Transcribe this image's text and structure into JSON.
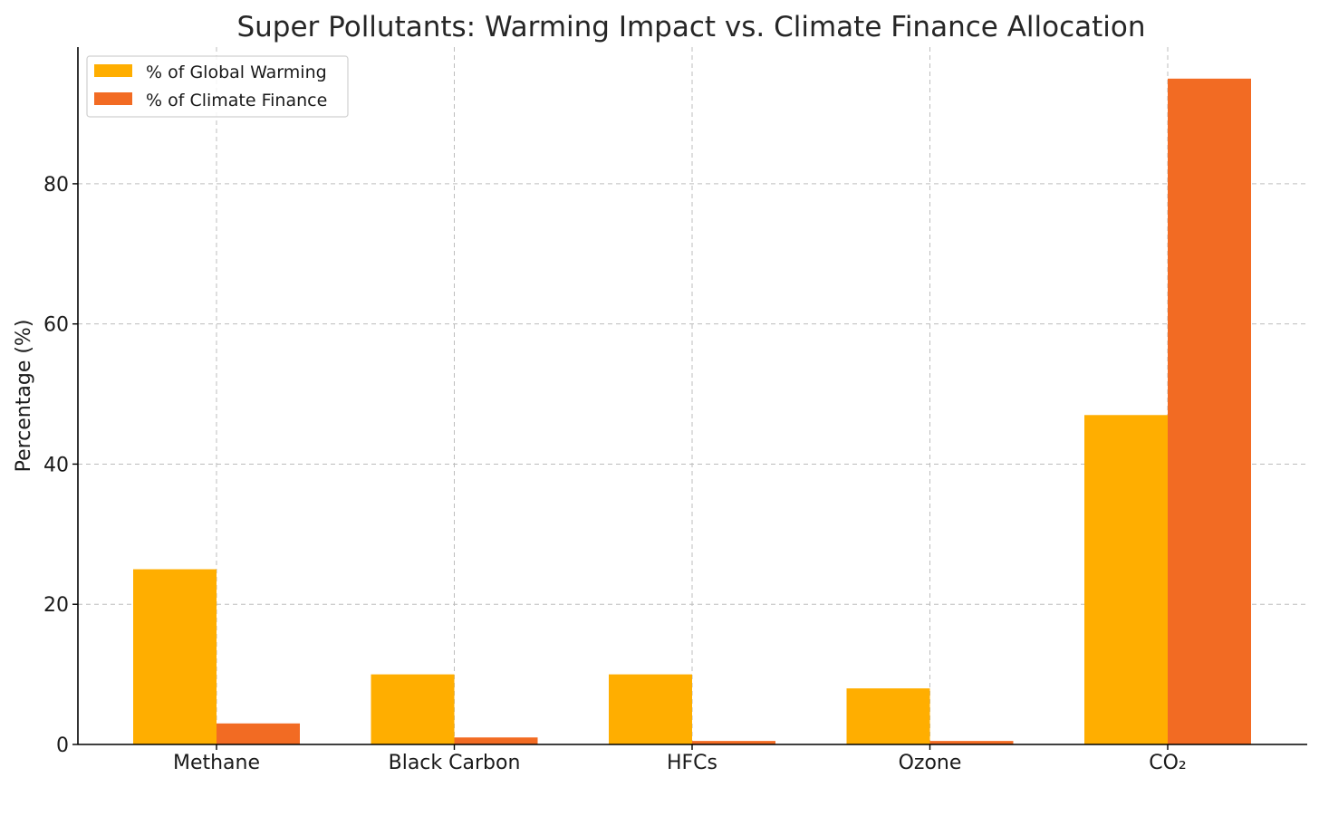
{
  "chart_data": {
    "type": "bar",
    "title": "Super Pollutants: Warming Impact vs. Climate Finance Allocation",
    "xlabel": "",
    "ylabel": "Percentage (%)",
    "categories": [
      "Methane",
      "Black Carbon",
      "HFCs",
      "Ozone",
      "CO₂"
    ],
    "series": [
      {
        "name": "% of Global Warming",
        "color": "#FFAE00",
        "values": [
          25,
          10,
          10,
          8,
          47
        ]
      },
      {
        "name": "% of Climate Finance",
        "color": "#F26B23",
        "values": [
          3,
          1,
          0.5,
          0.5,
          95
        ]
      }
    ],
    "ylim": [
      0,
      99.5
    ],
    "yticks": [
      0,
      20,
      40,
      60,
      80
    ],
    "grid": true,
    "legend_position": "top-left"
  }
}
